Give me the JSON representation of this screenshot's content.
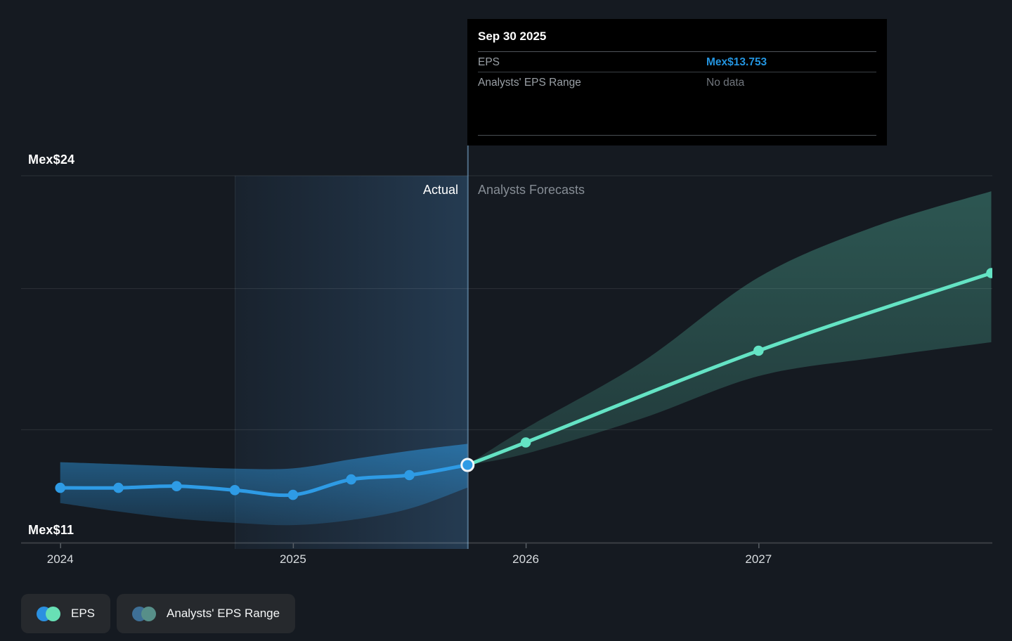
{
  "page": {
    "background": "#151A21"
  },
  "y_axis_labels": {
    "top": "Mex$24",
    "bottom": "Mex$11"
  },
  "period_labels": {
    "actual": "Actual",
    "forecast": "Analysts Forecasts"
  },
  "tooltip": {
    "title": "Sep 30 2025",
    "rows": [
      {
        "label": "EPS",
        "value": "Mex$13.753"
      },
      {
        "label": "Analysts' EPS Range",
        "value": "No data"
      }
    ]
  },
  "legend": [
    {
      "label": "EPS",
      "dots": [
        "#2B90E0",
        "#68E0B5"
      ]
    },
    {
      "label": "Analysts' EPS Range",
      "dots": [
        "#3E6F96",
        "#578F89"
      ]
    }
  ],
  "chart_data": {
    "type": "line",
    "title": "EPS actual vs analysts forecast",
    "currency_prefix": "Mex$",
    "x_ticks": [
      2024,
      2025,
      2026,
      2027
    ],
    "y_axis": {
      "min": 11,
      "max": 24,
      "gridline_values": [
        24,
        20,
        15
      ],
      "labeled_values": [
        24,
        11
      ]
    },
    "highlight_span": {
      "from": 2024.75,
      "to": 2025.75
    },
    "selected_point": {
      "date": "Sep 30 2025",
      "x": 2025.75,
      "value": 13.753
    },
    "series": [
      {
        "name": "EPS",
        "kind": "actual",
        "color": "#2E9BE5",
        "x": [
          2024.0,
          2024.25,
          2024.5,
          2024.75,
          2025.0,
          2025.25,
          2025.5,
          2025.75
        ],
        "values": [
          12.94,
          12.94,
          13.0,
          12.86,
          12.69,
          13.24,
          13.39,
          13.753
        ],
        "band": {
          "x": [
            2024.0,
            2024.25,
            2024.5,
            2024.75,
            2025.0,
            2025.25,
            2025.5,
            2025.75
          ],
          "hi": [
            13.85,
            13.78,
            13.7,
            13.62,
            13.63,
            13.95,
            14.25,
            14.5
          ],
          "lo": [
            12.4,
            12.1,
            11.85,
            11.7,
            11.62,
            11.8,
            12.2,
            12.95
          ]
        }
      },
      {
        "name": "Analysts forecast EPS",
        "kind": "forecast",
        "color": "#64E3C4",
        "x": [
          2025.75,
          2026.0,
          2027.0,
          2028.0
        ],
        "values": [
          13.753,
          14.55,
          17.8,
          20.55
        ],
        "band": {
          "x": [
            2025.75,
            2026.0,
            2026.5,
            2027.0,
            2027.5,
            2028.0
          ],
          "hi": [
            13.753,
            15.05,
            17.4,
            20.4,
            22.2,
            23.45
          ],
          "lo": [
            13.753,
            14.15,
            15.4,
            16.9,
            17.55,
            18.1
          ]
        }
      }
    ]
  }
}
